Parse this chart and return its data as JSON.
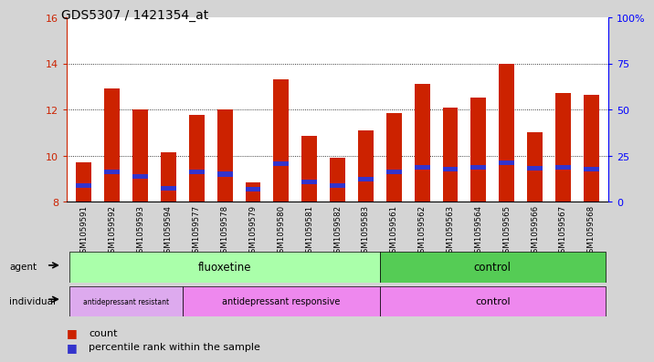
{
  "title": "GDS5307 / 1421354_at",
  "samples": [
    "GSM1059591",
    "GSM1059592",
    "GSM1059593",
    "GSM1059594",
    "GSM1059577",
    "GSM1059578",
    "GSM1059579",
    "GSM1059580",
    "GSM1059581",
    "GSM1059582",
    "GSM1059583",
    "GSM1059561",
    "GSM1059562",
    "GSM1059563",
    "GSM1059564",
    "GSM1059565",
    "GSM1059566",
    "GSM1059567",
    "GSM1059568"
  ],
  "count_values": [
    9.7,
    12.9,
    12.0,
    10.15,
    11.75,
    12.0,
    8.85,
    13.3,
    10.85,
    9.9,
    11.1,
    11.85,
    13.1,
    12.1,
    12.5,
    14.0,
    11.0,
    12.7,
    12.65
  ],
  "percentile_values": [
    8.7,
    9.3,
    9.1,
    8.6,
    9.3,
    9.2,
    8.55,
    9.65,
    8.85,
    8.7,
    9.0,
    9.3,
    9.5,
    9.4,
    9.5,
    9.7,
    9.45,
    9.5,
    9.4
  ],
  "ymin": 8,
  "ymax": 16,
  "yticks": [
    8,
    10,
    12,
    14,
    16
  ],
  "right_ytick_values": [
    0,
    25,
    50,
    75,
    100
  ],
  "right_ytick_labels": [
    "0",
    "25",
    "50",
    "75",
    "100%"
  ],
  "bar_color": "#cc2200",
  "percentile_color": "#3333cc",
  "bar_width": 0.55,
  "flu_color_light": "#bbffbb",
  "flu_color": "#aaffaa",
  "ctrl_color": "#55cc55",
  "indiv_resistant_color": "#ddaaee",
  "indiv_responsive_color": "#ee88ee",
  "indiv_control_color": "#ee88ee",
  "legend_count_color": "#cc2200",
  "legend_percentile_color": "#3333cc",
  "fig_bg_color": "#d4d4d4",
  "plot_bg_color": "#ffffff",
  "tick_area_bg": "#d4d4d4"
}
